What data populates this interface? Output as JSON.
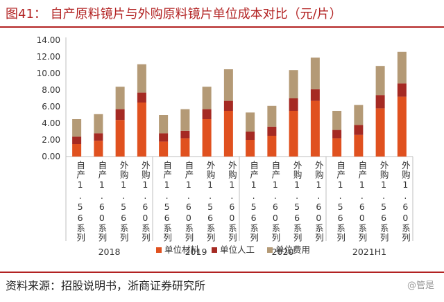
{
  "figure_title": "图41：  自产原料镜片与外购原料镜片单位成本对比（元/片）",
  "source": "资料来源：招股说明书，浙商证券研究所",
  "watermark": "@管是",
  "chart_data": {
    "type": "bar",
    "stacked": true,
    "title": "",
    "xlabel": "",
    "ylabel": "",
    "ylim": [
      0,
      14
    ],
    "yticks": [
      "0.00",
      "2.00",
      "4.00",
      "6.00",
      "8.00",
      "10.00",
      "12.00",
      "14.00"
    ],
    "legend_position": "bottom",
    "groups": [
      "2018",
      "2019",
      "2020",
      "2021H1"
    ],
    "categories_per_group": [
      "自产1.56系列",
      "自产1.60系列",
      "外购1.56系列",
      "外购1.60系列"
    ],
    "series": [
      {
        "name": "单位材料",
        "color": "#e0511f",
        "values": [
          1.5,
          1.9,
          4.4,
          6.5,
          1.8,
          2.2,
          4.5,
          5.5,
          2.0,
          2.5,
          5.5,
          6.7,
          2.2,
          2.6,
          5.8,
          7.2
        ]
      },
      {
        "name": "单位人工",
        "color": "#a52a23",
        "values": [
          0.9,
          0.9,
          1.3,
          1.2,
          1.0,
          0.9,
          1.2,
          1.2,
          1.0,
          1.1,
          1.5,
          1.4,
          1.0,
          1.2,
          1.6,
          1.6
        ]
      },
      {
        "name": "单位费用",
        "color": "#b49a76",
        "values": [
          2.1,
          2.3,
          2.7,
          3.4,
          2.2,
          2.6,
          2.7,
          3.8,
          2.3,
          2.5,
          3.4,
          3.8,
          2.3,
          2.4,
          3.5,
          3.8
        ]
      }
    ]
  }
}
